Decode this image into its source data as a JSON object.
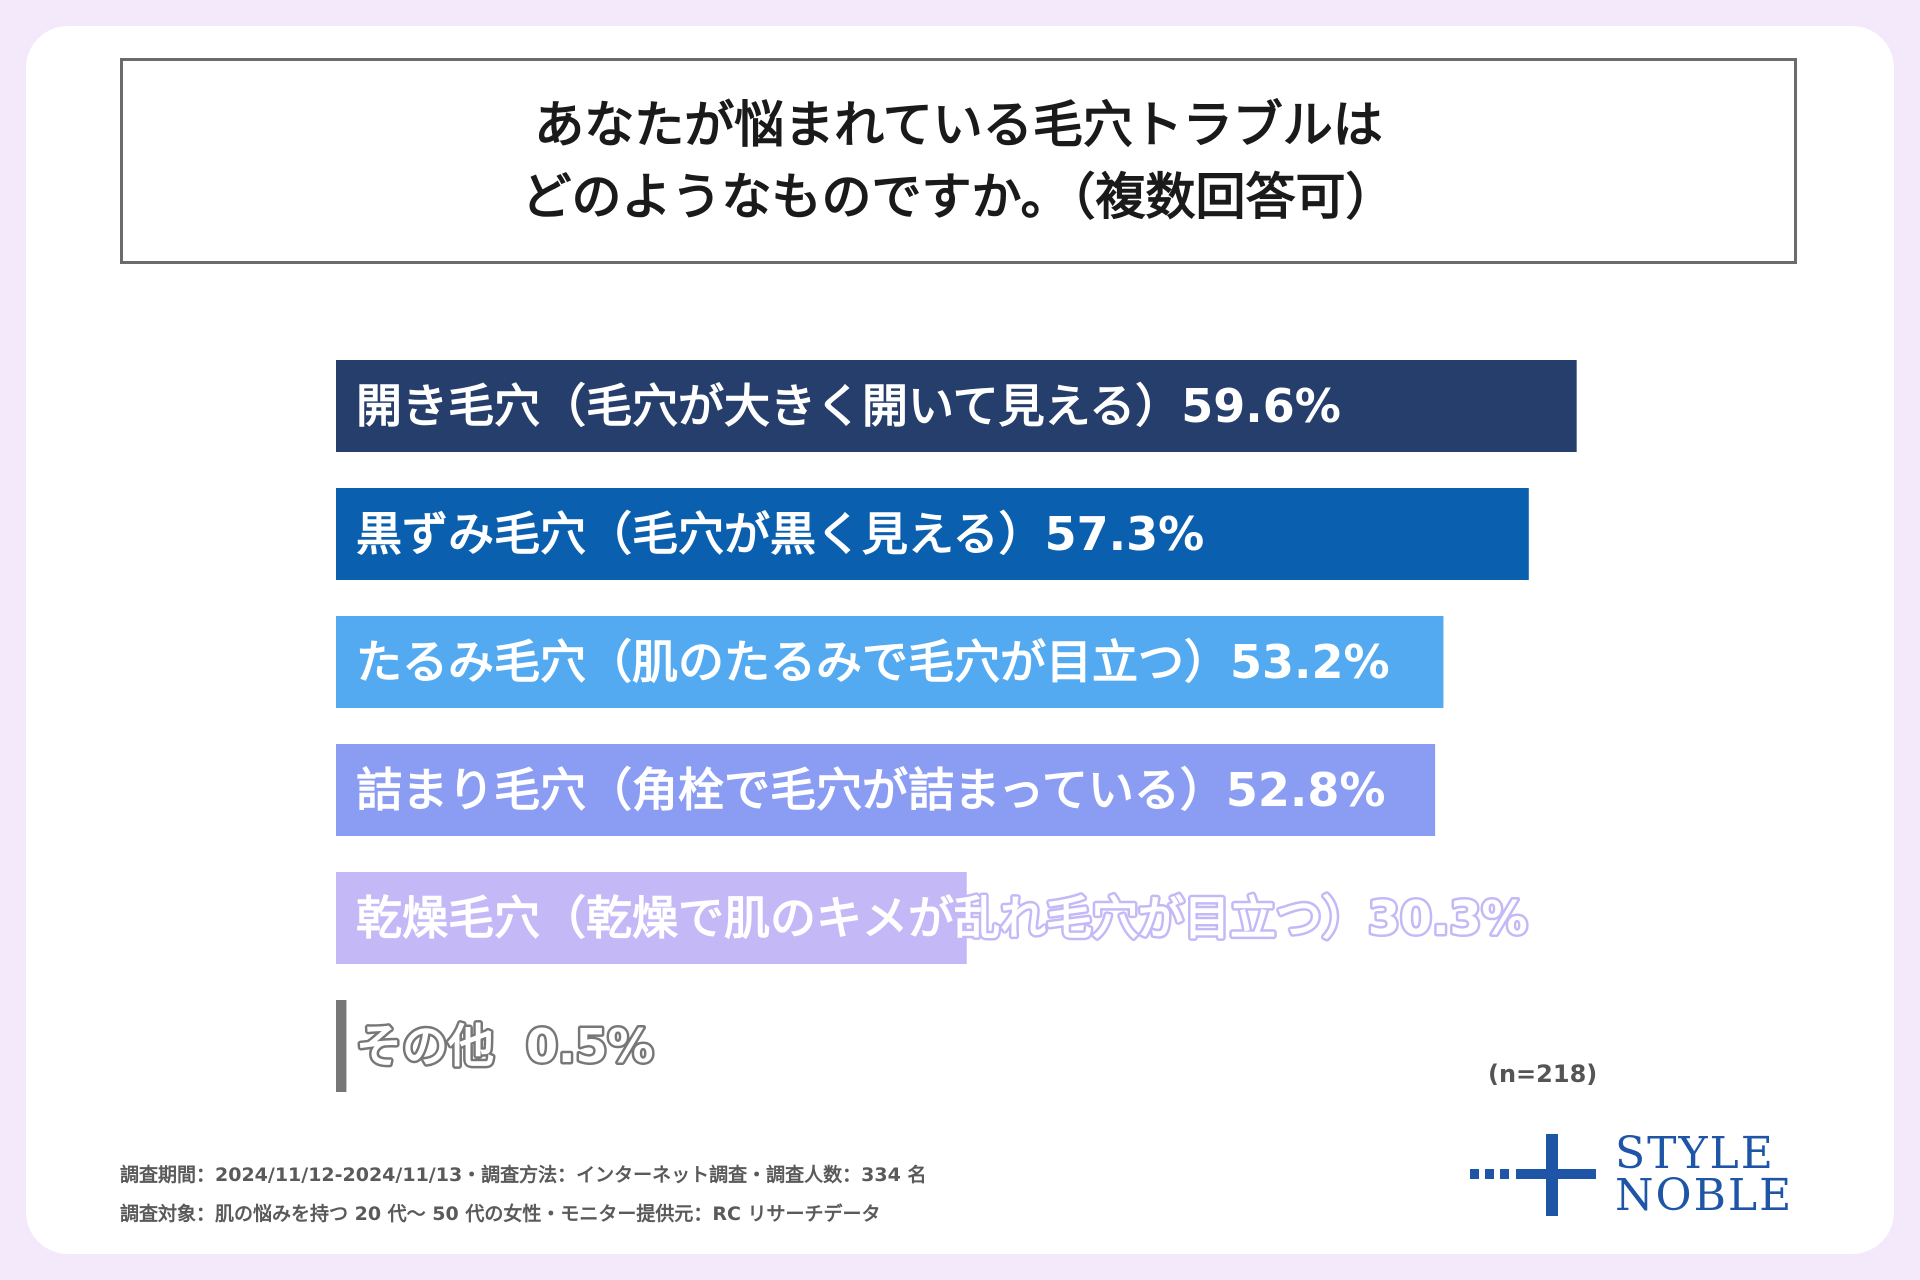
{
  "title": {
    "line1": "あなたが悩まれている毛穴トラブルは",
    "line2": "どのようなものですか。（複数回答可）"
  },
  "chart_data": {
    "type": "bar",
    "orientation": "horizontal",
    "categories": [
      "開き毛穴（毛穴が大きく開いて見える）",
      "黒ずみ毛穴（毛穴が黒く見える）",
      "たるみ毛穴（肌のたるみで毛穴が目立つ）",
      "詰まり毛穴（角栓で毛穴が詰まっている）",
      "乾燥毛穴（乾燥で肌のキメが乱れ毛穴が目立つ）",
      "その他"
    ],
    "values": [
      59.6,
      57.3,
      53.2,
      52.8,
      30.3,
      0.5
    ],
    "value_labels": [
      "59.6%",
      "57.3%",
      "53.2%",
      "52.8%",
      "30.3%",
      "0.5%"
    ],
    "colors": [
      "#263e6b",
      "#0a5fae",
      "#54aaf0",
      "#8b9cf3",
      "#c5b8f7",
      "#777777"
    ],
    "unit": "%",
    "xlim": [
      0,
      60
    ],
    "grid": false,
    "legend": "none"
  },
  "sample_note": "(n=218)",
  "footer": {
    "line1": "調査期間：2024/11/12-2024/11/13・調査方法：インターネット調査・調査人数：334 名",
    "line2": "調査対象：肌の悩みを持つ 20 代～ 50 代の女性・モニター提供元：RC リサーチデータ"
  },
  "logo": {
    "line1": "STYLE",
    "line2": "NOBLE",
    "color": "#1f55a6"
  }
}
